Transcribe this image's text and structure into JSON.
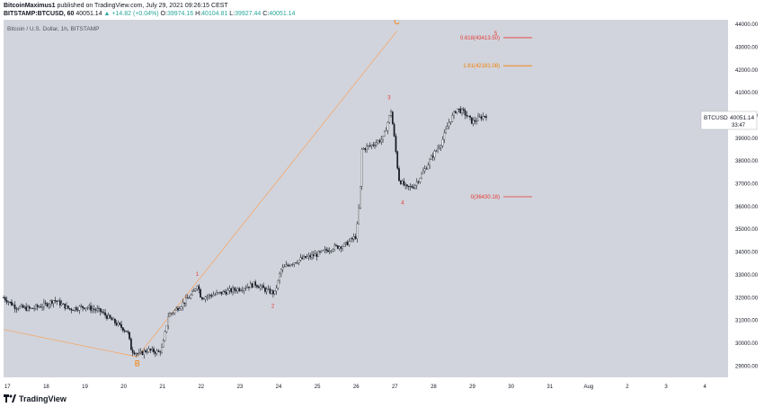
{
  "header": {
    "author": "BitcoinMaximus1",
    "published": "published on TradingView.com, July 29, 2021 09:26:15 CEST",
    "symbol_line": "BITSTAMP:BTCUSD, 60",
    "last": "40051.14",
    "change_arrow": "▲",
    "change": "+14.82 (+0.04%)",
    "o_label": "O:",
    "o": "39974.16",
    "h_label": "H:",
    "h": "40104.81",
    "l_label": "L:",
    "l": "39927.44",
    "c_label": "C:",
    "c": "40051.14"
  },
  "chart_title": "Bitcoin / U.S. Dollar, 1h, BITSTAMP",
  "price_tag": {
    "symbol": "BTCUSD",
    "price": "40051.14",
    "countdown": "33:47"
  },
  "colors": {
    "bg": "#d1d4dc",
    "candle": "#131722",
    "fib_red": "#e53935",
    "fib_orange": "#f57c00",
    "trend": "#f5a86a",
    "axis": "#ffffff"
  },
  "footer": {
    "brand": "TradingView"
  },
  "chart_data": {
    "type": "candlestick",
    "x_ticks": [
      "17",
      "18",
      "19",
      "20",
      "21",
      "22",
      "23",
      "24",
      "25",
      "26",
      "27",
      "28",
      "29",
      "30",
      "31",
      "Aug",
      "2",
      "3",
      "4"
    ],
    "y_ticks": [
      29000,
      30000,
      31000,
      32000,
      33000,
      34000,
      35000,
      36000,
      37000,
      38000,
      39000,
      40000,
      41000,
      42000,
      43000,
      44000
    ],
    "ylim": [
      28500,
      44200
    ],
    "x_range_days": [
      16.9,
      35.6
    ],
    "path": [
      [
        16.9,
        32000
      ],
      [
        17.2,
        31600
      ],
      [
        17.6,
        31500
      ],
      [
        18.0,
        31700
      ],
      [
        18.2,
        31900
      ],
      [
        18.6,
        31500
      ],
      [
        19.0,
        31600
      ],
      [
        19.4,
        31400
      ],
      [
        19.7,
        31000
      ],
      [
        20.1,
        30500
      ],
      [
        20.2,
        29700
      ],
      [
        20.4,
        29500
      ],
      [
        20.6,
        29700
      ],
      [
        20.9,
        29600
      ],
      [
        21.0,
        29800
      ],
      [
        21.15,
        31200
      ],
      [
        21.5,
        31700
      ],
      [
        21.8,
        32200
      ],
      [
        21.9,
        32600
      ],
      [
        22.0,
        32000
      ],
      [
        22.5,
        32200
      ],
      [
        23.0,
        32400
      ],
      [
        23.4,
        32600
      ],
      [
        23.7,
        32300
      ],
      [
        23.9,
        32200
      ],
      [
        24.0,
        32800
      ],
      [
        24.05,
        33200
      ],
      [
        24.3,
        33500
      ],
      [
        24.6,
        33700
      ],
      [
        25.0,
        33900
      ],
      [
        25.4,
        34200
      ],
      [
        25.7,
        34300
      ],
      [
        26.0,
        34700
      ],
      [
        26.1,
        36500
      ],
      [
        26.15,
        38500
      ],
      [
        26.4,
        38700
      ],
      [
        26.7,
        39000
      ],
      [
        26.9,
        40200
      ],
      [
        27.0,
        38800
      ],
      [
        27.1,
        37200
      ],
      [
        27.3,
        36800
      ],
      [
        27.5,
        36900
      ],
      [
        27.8,
        37700
      ],
      [
        28.0,
        38300
      ],
      [
        28.2,
        38800
      ],
      [
        28.4,
        39700
      ],
      [
        28.6,
        40300
      ],
      [
        28.8,
        40100
      ],
      [
        29.0,
        39700
      ],
      [
        29.2,
        39900
      ],
      [
        29.4,
        40050
      ]
    ],
    "annotations": [
      {
        "label": "B",
        "day": 20.35,
        "price": 29000,
        "color": "#f57c00"
      },
      {
        "label": "C",
        "day": 27.05,
        "price": 44000,
        "color": "#f57c00"
      },
      {
        "label": "1",
        "day": 21.9,
        "price": 32950,
        "color": "#e53935"
      },
      {
        "label": "2",
        "day": 23.85,
        "price": 31550,
        "color": "#e53935"
      },
      {
        "label": "3",
        "day": 26.85,
        "price": 40700,
        "color": "#e53935"
      },
      {
        "label": "4",
        "day": 27.2,
        "price": 36100,
        "color": "#e53935"
      },
      {
        "label": "5",
        "day": 29.6,
        "price": 43520,
        "color": "#e53935"
      }
    ],
    "fib_levels": [
      {
        "text": "0.618(43413.50)",
        "price": 43413.5,
        "color": "#e53935"
      },
      {
        "text": "1.61(42181.08)",
        "price": 42181.08,
        "color": "#f57c00"
      },
      {
        "text": "0(36430.18)",
        "price": 36430.18,
        "color": "#e53935"
      }
    ],
    "trendlines": [
      {
        "from": [
          16.9,
          30600
        ],
        "to": [
          20.35,
          29400
        ]
      },
      {
        "from": [
          20.35,
          29400
        ],
        "to": [
          27.05,
          43700
        ]
      }
    ]
  }
}
